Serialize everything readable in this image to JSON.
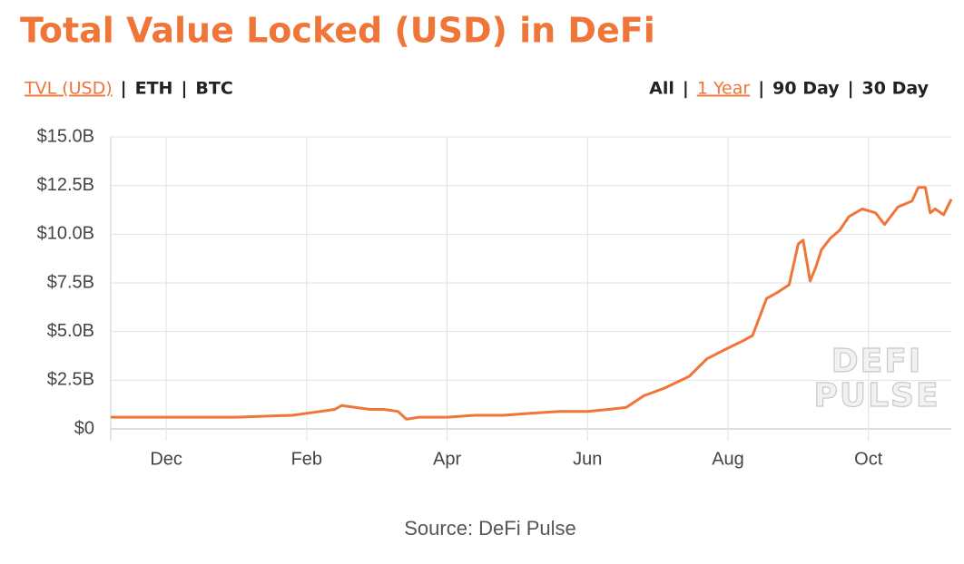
{
  "chart_data": {
    "type": "line",
    "title": "Total Value Locked (USD) in DeFi",
    "tabs_left": [
      "TVL (USD)",
      "ETH",
      "BTC"
    ],
    "tabs_right": [
      "All",
      "1 Year",
      "90 Day",
      "30 Day"
    ],
    "separator": "|",
    "active_left": 0,
    "active_right": 1,
    "x": [
      -0.79,
      -0.5,
      -0.2,
      0.2,
      0.6,
      1.0,
      1.4,
      1.8,
      2.0,
      2.2,
      2.4,
      2.5,
      2.7,
      2.9,
      3.1,
      3.3,
      3.42,
      3.6,
      3.8,
      4.0,
      4.4,
      4.8,
      5.2,
      5.6,
      6.0,
      6.3,
      6.55,
      6.8,
      7.1,
      7.45,
      7.7,
      7.97,
      8.2,
      8.35,
      8.55,
      8.7,
      8.87,
      9.0,
      9.07,
      9.17,
      9.25,
      9.33,
      9.46,
      9.59,
      9.72,
      9.91,
      10.1,
      10.23,
      10.42,
      10.62,
      10.71,
      10.81,
      10.88,
      10.95,
      11.07,
      11.18
    ],
    "series": [
      {
        "name": "TVL (USD)",
        "color": "#ef7538",
        "values": [
          0.6,
          0.6,
          0.6,
          0.6,
          0.6,
          0.6,
          0.65,
          0.7,
          0.8,
          0.9,
          1.0,
          1.2,
          1.1,
          1.0,
          1.0,
          0.9,
          0.5,
          0.6,
          0.6,
          0.6,
          0.7,
          0.7,
          0.8,
          0.9,
          0.9,
          1.0,
          1.1,
          1.7,
          2.1,
          2.7,
          3.6,
          4.1,
          4.5,
          4.8,
          6.7,
          7.0,
          7.4,
          9.5,
          9.7,
          7.6,
          8.3,
          9.2,
          9.8,
          10.2,
          10.9,
          11.3,
          11.1,
          10.5,
          11.4,
          11.7,
          12.4,
          12.4,
          11.1,
          11.3,
          11.0,
          11.8
        ]
      }
    ],
    "xlim": [
      -0.79,
      11.18
    ],
    "xticks": [
      {
        "value": 0,
        "label": "Dec"
      },
      {
        "value": 2,
        "label": "Feb"
      },
      {
        "value": 4,
        "label": "Apr"
      },
      {
        "value": 6,
        "label": "Jun"
      },
      {
        "value": 8,
        "label": "Aug"
      },
      {
        "value": 10,
        "label": "Oct"
      }
    ],
    "ylim": [
      0,
      15
    ],
    "yticks": [
      {
        "value": 0,
        "label": "$0"
      },
      {
        "value": 2.5,
        "label": "$2.5B"
      },
      {
        "value": 5,
        "label": "$5.0B"
      },
      {
        "value": 7.5,
        "label": "$7.5B"
      },
      {
        "value": 10,
        "label": "$10.0B"
      },
      {
        "value": 12.5,
        "label": "$12.5B"
      },
      {
        "value": 15,
        "label": "$15.0B"
      }
    ],
    "grid": true,
    "watermark": [
      "DEFI",
      "PULSE"
    ],
    "source": "Source: DeFi Pulse"
  }
}
